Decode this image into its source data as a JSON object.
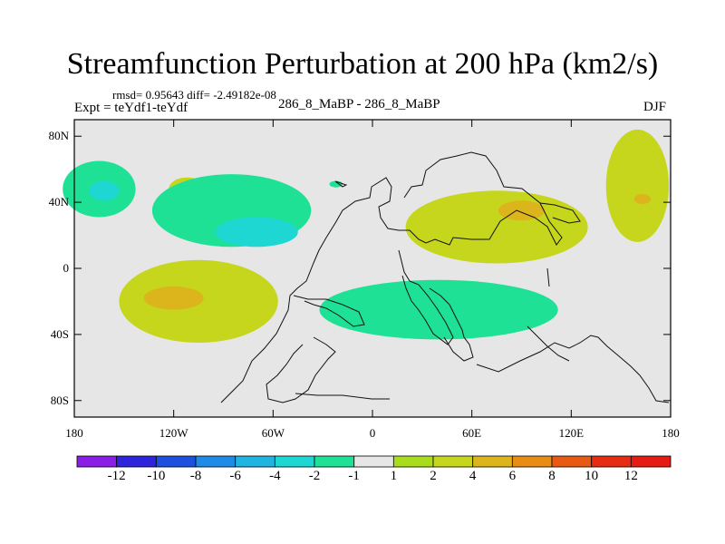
{
  "chart_data": {
    "type": "contour-map",
    "title": "Streamfunction Perturbation at 200 hPa (km2/s)",
    "stats": "rmsd= 0.95643 diff= -2.49182e-08",
    "left_label": "Expt = teYdf1-teYdf",
    "center_label": "286_8_MaBP - 286_8_MaBP",
    "right_label": "DJF",
    "x_ticks": [
      "180",
      "120W",
      "60W",
      "0",
      "60E",
      "120E",
      "180"
    ],
    "y_ticks": [
      "80N",
      "40N",
      "0",
      "40S",
      "80S"
    ],
    "xlim": [
      -180,
      180
    ],
    "ylim": [
      -90,
      90
    ],
    "colorbar": {
      "labels": [
        "-12",
        "-10",
        "-8",
        "-6",
        "-4",
        "-2",
        "-1",
        "1",
        "2",
        "4",
        "6",
        "8",
        "10",
        "12"
      ],
      "colors": [
        "#8b1ee6",
        "#2e24dc",
        "#1e50e0",
        "#1e8ce6",
        "#1fb4e1",
        "#1ed7d2",
        "#1ee196",
        "#e6e6e6",
        "#a8dc1c",
        "#c6d61c",
        "#dcb41c",
        "#e88c14",
        "#e85a14",
        "#e62d14",
        "#e61c14"
      ]
    },
    "regions": [
      {
        "value": -2,
        "lon": -165,
        "lat": 48,
        "rx": 22,
        "ry": 17
      },
      {
        "value": -4,
        "lon": -162,
        "lat": 47,
        "rx": 9,
        "ry": 6
      },
      {
        "value": 2,
        "lon": -112,
        "lat": 48,
        "rx": 11,
        "ry": 7
      },
      {
        "value": -2,
        "lon": -85,
        "lat": 35,
        "rx": 48,
        "ry": 22
      },
      {
        "value": -4,
        "lon": -70,
        "lat": 22,
        "rx": 25,
        "ry": 9
      },
      {
        "value": -2,
        "lon": -22,
        "lat": 51,
        "rx": 4,
        "ry": 2
      },
      {
        "value": 2,
        "lon": -105,
        "lat": -20,
        "rx": 48,
        "ry": 25
      },
      {
        "value": 4,
        "lon": -120,
        "lat": -18,
        "rx": 18,
        "ry": 7
      },
      {
        "value": 2,
        "lon": 75,
        "lat": 25,
        "rx": 55,
        "ry": 22
      },
      {
        "value": 4,
        "lon": 90,
        "lat": 35,
        "rx": 14,
        "ry": 6
      },
      {
        "value": -2,
        "lon": 40,
        "lat": -25,
        "rx": 72,
        "ry": 18
      },
      {
        "value": 2,
        "lon": 160,
        "lat": 50,
        "rx": 19,
        "ry": 34
      },
      {
        "value": 4,
        "lon": 163,
        "lat": 42,
        "rx": 5,
        "ry": 3
      }
    ]
  }
}
